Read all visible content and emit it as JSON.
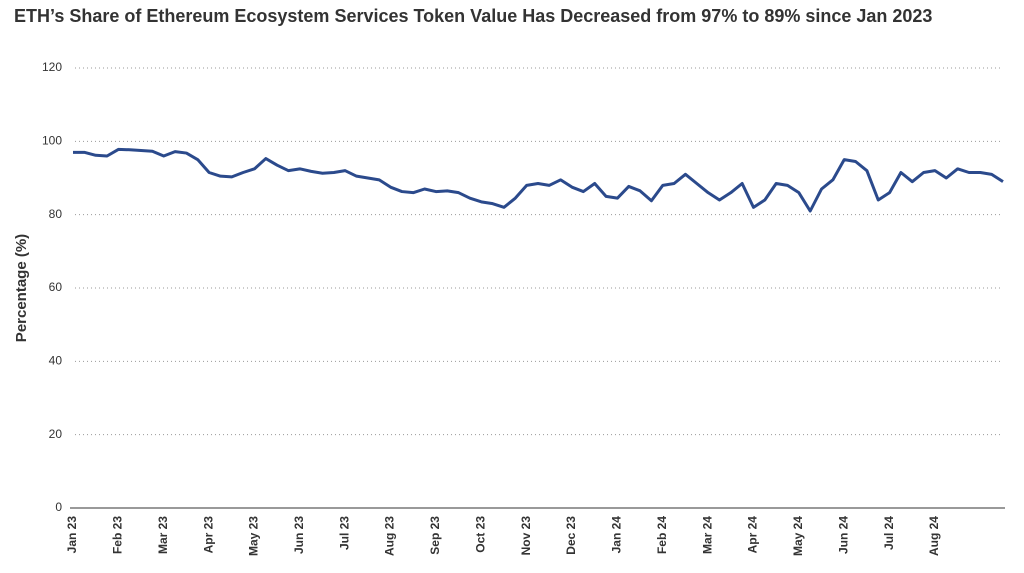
{
  "chart_data": {
    "type": "line",
    "title": "ETH’s Share of Ethereum Ecosystem Services Token Value Has Decreased from 97% to 89% since Jan 2023",
    "ylabel": "Percentage (%)",
    "categories": [
      "Jan 23",
      null,
      null,
      null,
      "Feb 23",
      null,
      null,
      null,
      "Mar 23",
      null,
      null,
      null,
      "Apr 23",
      null,
      null,
      null,
      "May 23",
      null,
      null,
      null,
      "Jun 23",
      null,
      null,
      null,
      "Jul 23",
      null,
      null,
      null,
      "Aug 23",
      null,
      null,
      null,
      "Sep 23",
      null,
      null,
      null,
      "Oct 23",
      null,
      null,
      null,
      "Nov 23",
      null,
      null,
      null,
      "Dec 23",
      null,
      null,
      null,
      "Jan 24",
      null,
      null,
      null,
      "Feb 24",
      null,
      null,
      null,
      "Mar 24",
      null,
      null,
      null,
      "Apr 24",
      null,
      null,
      null,
      "May 24",
      null,
      null,
      null,
      "Jun 24",
      null,
      null,
      null,
      "Jul 24",
      null,
      null,
      null,
      "Aug 24",
      null,
      null,
      null,
      null,
      null,
      null
    ],
    "series": [
      {
        "name": "ETH share",
        "color": "#2b4a8c",
        "values": [
          97,
          97,
          96.2,
          96,
          97.8,
          97.7,
          97.5,
          97.3,
          96,
          97.2,
          96.8,
          95,
          91.5,
          90.5,
          90.3,
          91.5,
          92.5,
          95.3,
          93.5,
          92,
          92.5,
          91.8,
          91.3,
          91.5,
          92,
          90.5,
          90,
          89.5,
          87.5,
          86.3,
          86,
          87,
          86.3,
          86.5,
          86,
          84.5,
          83.5,
          83,
          82,
          84.5,
          88,
          88.5,
          88,
          89.5,
          87.5,
          86.3,
          88.5,
          85,
          84.5,
          87.7,
          86.5,
          83.8,
          88,
          88.5,
          91,
          88.5,
          86,
          84,
          86,
          88.5,
          82,
          84,
          88.5,
          88,
          86,
          81,
          87,
          89.5,
          95,
          94.5,
          92,
          84,
          86,
          91.5,
          89,
          91.5,
          92,
          90,
          92.5,
          91.5,
          91.5,
          91,
          89
        ]
      }
    ],
    "ylim": [
      0,
      120
    ],
    "yticks": [
      0,
      20,
      40,
      60,
      80,
      100,
      120
    ],
    "grid": true
  }
}
